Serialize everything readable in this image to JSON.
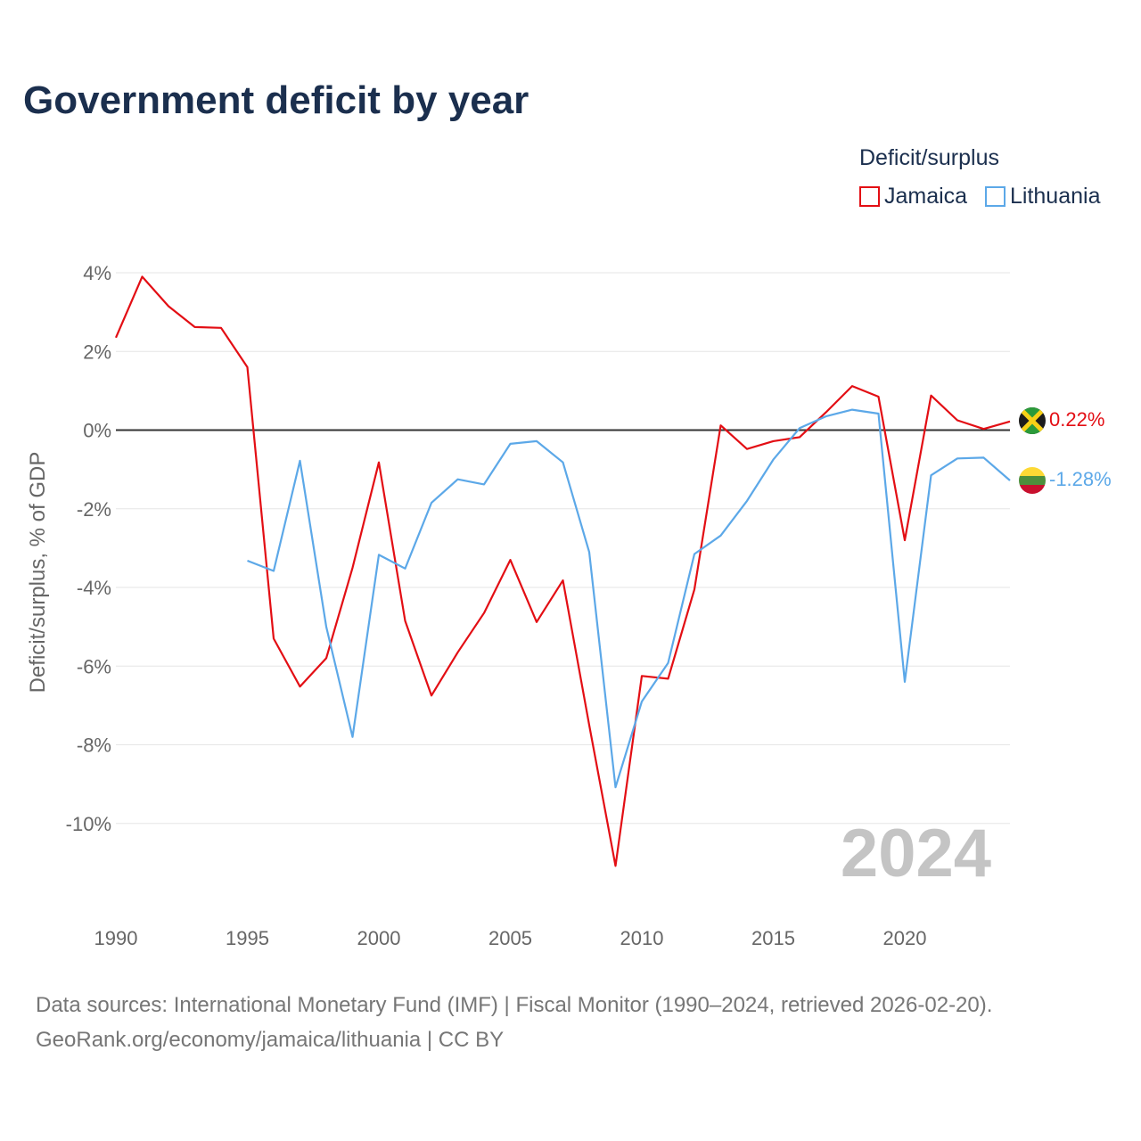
{
  "title": "Government deficit by year",
  "legend": {
    "title": "Deficit/surplus",
    "items": [
      {
        "label": "Jamaica",
        "color": "#e30e14"
      },
      {
        "label": "Lithuania",
        "color": "#5ca8e8"
      }
    ]
  },
  "chart_data": {
    "type": "line",
    "title": "Government deficit by year",
    "xlabel": "",
    "ylabel": "Deficit/surplus, % of GDP",
    "xlim": [
      1990,
      2024
    ],
    "ylim": [
      -12.0,
      4.0
    ],
    "grid": true,
    "yticks": [
      4,
      2,
      0,
      -2,
      -4,
      -6,
      -8,
      -10
    ],
    "ytick_labels": [
      "4%",
      "2%",
      "0%",
      "-2%",
      "-4%",
      "-6%",
      "-8%",
      "-10%"
    ],
    "xticks": [
      1990,
      1995,
      2000,
      2005,
      2010,
      2015,
      2020
    ],
    "xtick_labels": [
      "1990",
      "1995",
      "2000",
      "2005",
      "2010",
      "2015",
      "2020"
    ],
    "watermark": "2024",
    "series": [
      {
        "name": "Jamaica",
        "color": "#e30e14",
        "end_label": "0.22%",
        "x": [
          1990,
          1991,
          1992,
          1993,
          1994,
          1995,
          1996,
          1997,
          1998,
          1999,
          2000,
          2001,
          2002,
          2003,
          2004,
          2005,
          2006,
          2007,
          2008,
          2009,
          2010,
          2011,
          2012,
          2013,
          2014,
          2015,
          2016,
          2017,
          2018,
          2019,
          2020,
          2021,
          2022,
          2023,
          2024
        ],
        "values": [
          2.35,
          3.9,
          3.15,
          2.62,
          2.6,
          1.6,
          -5.3,
          -6.52,
          -5.8,
          -3.5,
          -0.82,
          -4.85,
          -6.75,
          -5.65,
          -4.65,
          -3.3,
          -4.88,
          -3.82,
          -7.5,
          -11.08,
          -6.25,
          -6.32,
          -4.05,
          0.12,
          -0.48,
          -0.28,
          -0.18,
          0.45,
          1.12,
          0.85,
          -2.8,
          0.88,
          0.25,
          0.03,
          0.22
        ]
      },
      {
        "name": "Lithuania",
        "color": "#5ca8e8",
        "end_label": "-1.28%",
        "x": [
          1995,
          1996,
          1997,
          1998,
          1999,
          2000,
          2001,
          2002,
          2003,
          2004,
          2005,
          2006,
          2007,
          2008,
          2009,
          2010,
          2011,
          2012,
          2013,
          2014,
          2015,
          2016,
          2017,
          2018,
          2019,
          2020,
          2021,
          2022,
          2023,
          2024
        ],
        "values": [
          -3.32,
          -3.58,
          -0.78,
          -5.0,
          -7.8,
          -3.17,
          -3.52,
          -1.85,
          -1.25,
          -1.38,
          -0.35,
          -0.28,
          -0.82,
          -3.1,
          -9.08,
          -6.9,
          -5.92,
          -3.15,
          -2.68,
          -1.8,
          -0.75,
          0.05,
          0.35,
          0.52,
          0.42,
          -6.4,
          -1.15,
          -0.72,
          -0.7,
          -1.28
        ]
      }
    ]
  },
  "source": {
    "line1": "Data sources: International Monetary Fund (IMF) | Fiscal Monitor (1990–2024, retrieved 2026-02-20).",
    "line2": "GeoRank.org/economy/jamaica/lithuania | CC BY"
  }
}
